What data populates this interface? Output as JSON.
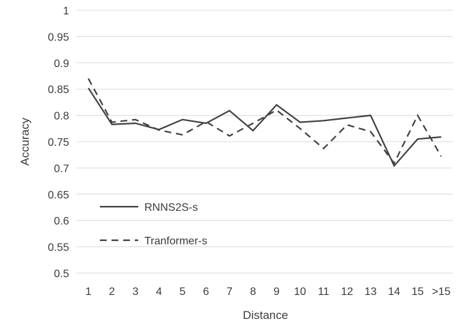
{
  "chart_data": {
    "type": "line",
    "xlabel": "Distance",
    "ylabel": "Accuracy",
    "categories": [
      "1",
      "2",
      "3",
      "4",
      "5",
      "6",
      "7",
      "8",
      "9",
      "10",
      "11",
      "12",
      "13",
      "14",
      "15",
      ">15"
    ],
    "ylim": [
      0.5,
      1
    ],
    "yticks": [
      "0.5",
      "0.55",
      "0.6",
      "0.65",
      "0.7",
      "0.75",
      "0.8",
      "0.85",
      "0.9",
      "0.95",
      "1"
    ],
    "grid": true,
    "legend_position": "bottom-left",
    "series": [
      {
        "name": "RNNS2S-s",
        "style": "solid",
        "color": "#404040",
        "values": [
          0.852,
          0.783,
          0.785,
          0.773,
          0.792,
          0.785,
          0.809,
          0.771,
          0.82,
          0.787,
          0.79,
          0.795,
          0.8,
          0.704,
          0.755,
          0.759
        ]
      },
      {
        "name": "Tranformer-s",
        "style": "dashed",
        "color": "#404040",
        "values": [
          0.87,
          0.787,
          0.792,
          0.772,
          0.763,
          0.788,
          0.761,
          0.785,
          0.81,
          0.775,
          0.737,
          0.782,
          0.769,
          0.709,
          0.8,
          0.722
        ]
      }
    ]
  }
}
